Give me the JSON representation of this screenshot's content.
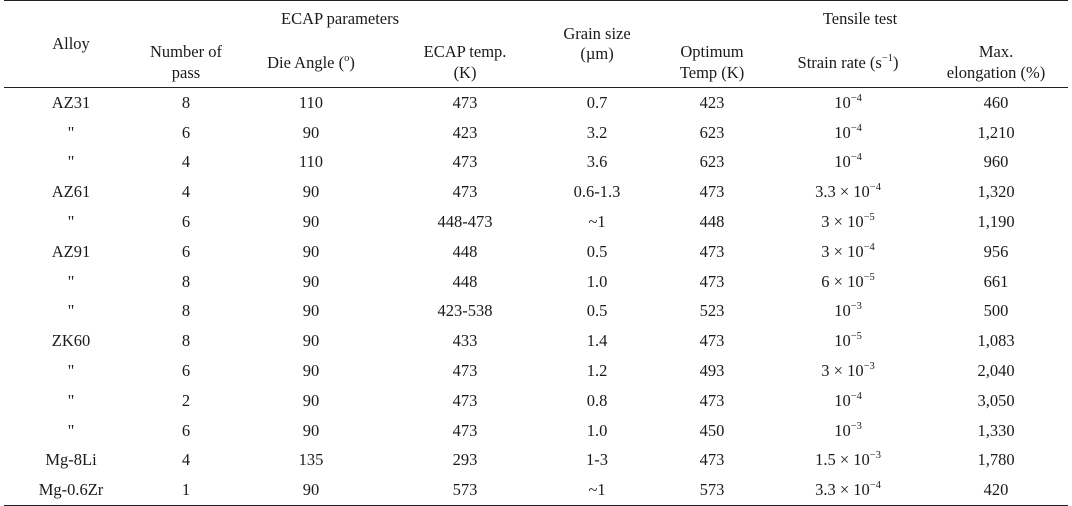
{
  "headers": {
    "alloy": "Alloy",
    "ecap_group": "ECAP parameters",
    "tensile_group": "Tensile test",
    "number_of_pass_l1": "Number of",
    "number_of_pass_l2": "pass",
    "die_angle_pre": "Die Angle (",
    "die_angle_sup": "o",
    "die_angle_post": ")",
    "ecap_temp_l1": "ECAP temp.",
    "ecap_temp_l2": "(K)",
    "grain_size_l1": "Grain size",
    "grain_size_l2": "(µm)",
    "optimum_temp_l1": "Optimum",
    "optimum_temp_l2": "Temp (K)",
    "strain_rate_pre": "Strain rate (s",
    "strain_rate_sup": "−1",
    "strain_rate_post": ")",
    "max_elong_l1": "Max.",
    "max_elong_l2": "elongation (%)"
  },
  "rows": [
    {
      "alloy": "AZ31",
      "passes": "8",
      "die_angle": "110",
      "ecap_temp": "473",
      "grain_size": "0.7",
      "opt_temp": "423",
      "rate_base": "10",
      "rate_exp": "−4",
      "elongation": "460"
    },
    {
      "alloy": "\"",
      "passes": "6",
      "die_angle": "90",
      "ecap_temp": "423",
      "grain_size": "3.2",
      "opt_temp": "623",
      "rate_base": "10",
      "rate_exp": "−4",
      "elongation": "1,210"
    },
    {
      "alloy": "\"",
      "passes": "4",
      "die_angle": "110",
      "ecap_temp": "473",
      "grain_size": "3.6",
      "opt_temp": "623",
      "rate_base": "10",
      "rate_exp": "−4",
      "elongation": "960"
    },
    {
      "alloy": "AZ61",
      "passes": "4",
      "die_angle": "90",
      "ecap_temp": "473",
      "grain_size": "0.6-1.3",
      "opt_temp": "473",
      "rate_base": "3.3 × 10",
      "rate_exp": "−4",
      "elongation": "1,320"
    },
    {
      "alloy": "\"",
      "passes": "6",
      "die_angle": "90",
      "ecap_temp": "448-473",
      "grain_size": "~1",
      "opt_temp": "448",
      "rate_base": "3 × 10",
      "rate_exp": "−5",
      "elongation": "1,190"
    },
    {
      "alloy": "AZ91",
      "passes": "6",
      "die_angle": "90",
      "ecap_temp": "448",
      "grain_size": "0.5",
      "opt_temp": "473",
      "rate_base": "3 × 10",
      "rate_exp": "−4",
      "elongation": "956"
    },
    {
      "alloy": "\"",
      "passes": "8",
      "die_angle": "90",
      "ecap_temp": "448",
      "grain_size": "1.0",
      "opt_temp": "473",
      "rate_base": "6 × 10",
      "rate_exp": "−5",
      "elongation": "661"
    },
    {
      "alloy": "\"",
      "passes": "8",
      "die_angle": "90",
      "ecap_temp": "423-538",
      "grain_size": "0.5",
      "opt_temp": "523",
      "rate_base": "10",
      "rate_exp": "−3",
      "elongation": "500"
    },
    {
      "alloy": "ZK60",
      "passes": "8",
      "die_angle": "90",
      "ecap_temp": "433",
      "grain_size": "1.4",
      "opt_temp": "473",
      "rate_base": "10",
      "rate_exp": "−5",
      "elongation": "1,083"
    },
    {
      "alloy": "\"",
      "passes": "6",
      "die_angle": "90",
      "ecap_temp": "473",
      "grain_size": "1.2",
      "opt_temp": "493",
      "rate_base": "3 × 10",
      "rate_exp": "−3",
      "elongation": "2,040"
    },
    {
      "alloy": "\"",
      "passes": "2",
      "die_angle": "90",
      "ecap_temp": "473",
      "grain_size": "0.8",
      "opt_temp": "473",
      "rate_base": "10",
      "rate_exp": "−4",
      "elongation": "3,050"
    },
    {
      "alloy": "\"",
      "passes": "6",
      "die_angle": "90",
      "ecap_temp": "473",
      "grain_size": "1.0",
      "opt_temp": "450",
      "rate_base": "10",
      "rate_exp": "−3",
      "elongation": "1,330"
    },
    {
      "alloy": "Mg-8Li",
      "passes": "4",
      "die_angle": "135",
      "ecap_temp": "293",
      "grain_size": "1-3",
      "opt_temp": "473",
      "rate_base": "1.5 × 10",
      "rate_exp": "−3",
      "elongation": "1,780"
    },
    {
      "alloy": "Mg-0.6Zr",
      "passes": "1",
      "die_angle": "90",
      "ecap_temp": "573",
      "grain_size": "~1",
      "opt_temp": "573",
      "rate_base": "3.3 × 10",
      "rate_exp": "−4",
      "elongation": "420"
    }
  ]
}
